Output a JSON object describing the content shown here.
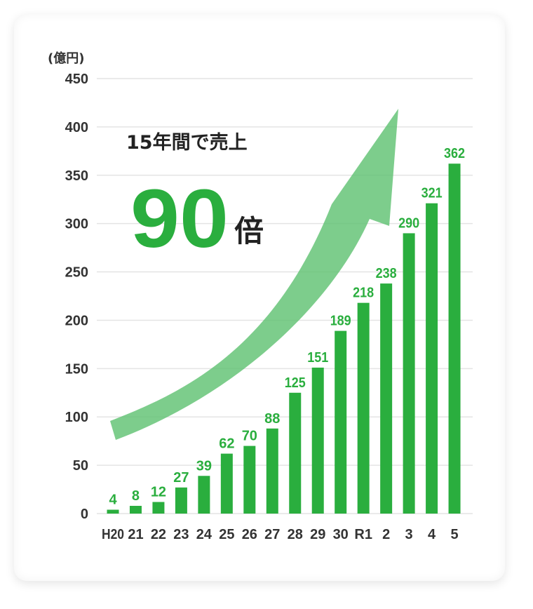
{
  "colors": {
    "bar": "#2AAE3E",
    "arrow": "#5CC06F",
    "grid": "#E4E4E4",
    "axis_text": "#333333",
    "headline_text": "#222222"
  },
  "annotation": {
    "headline": "15年間で売上",
    "multiplier": "90",
    "multiplier_suffix": "倍"
  },
  "chart_data": {
    "type": "bar",
    "title": "",
    "ylabel": "(億円)",
    "xlabel": "",
    "categories": [
      "H20",
      "21",
      "22",
      "23",
      "24",
      "25",
      "26",
      "27",
      "28",
      "29",
      "30",
      "R1",
      "2",
      "3",
      "4",
      "5"
    ],
    "values": [
      4,
      8,
      12,
      27,
      39,
      62,
      70,
      88,
      125,
      151,
      189,
      218,
      238,
      290,
      321,
      362
    ],
    "yticks": [
      0,
      50,
      100,
      150,
      200,
      250,
      300,
      350,
      400,
      450
    ],
    "ylim": [
      0,
      450
    ],
    "grid": true,
    "legend": null,
    "annotations": [
      "15年間で売上",
      "90倍",
      "upward curved arrow"
    ]
  }
}
